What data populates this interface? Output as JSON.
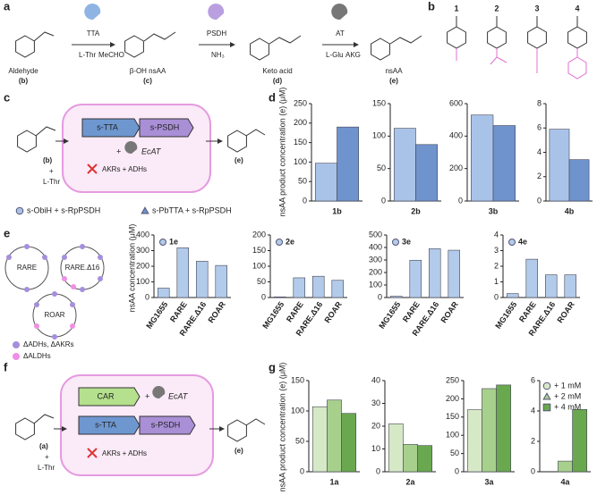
{
  "panel_labels": [
    "a",
    "b",
    "c",
    "d",
    "e",
    "f",
    "g"
  ],
  "scheme_a": {
    "enzymes": [
      "TTA",
      "PSDH",
      "AT"
    ],
    "cosubstrates": [
      "L-Thr",
      "NH₃",
      "L-Glu"
    ],
    "coproducts": [
      "MeCHO",
      "AKG"
    ],
    "compounds": [
      {
        "name": "Aldehyde",
        "id": "(b)"
      },
      {
        "name": "β-OH nsAA",
        "id": "(c)"
      },
      {
        "name": "Keto acid",
        "id": "(d)"
      },
      {
        "name": "nsAA",
        "id": "(e)"
      }
    ]
  },
  "substrates_b": {
    "numbers": [
      "1",
      "2",
      "3",
      "4"
    ]
  },
  "pathway_c": {
    "substrate": "(b)",
    "plus": "+",
    "cosubstrate": "L-Thr",
    "product": "(e)",
    "genes": [
      "s-TTA",
      "s-PSDH"
    ],
    "transaminase": "EcAT",
    "knockout": "AKRs + ADHs"
  },
  "strains_e": {
    "names": [
      "RARE",
      "RARE.Δ16",
      "ROAR"
    ],
    "legend": [
      "ΔADHs, ΔAKRs",
      "ΔALDHs"
    ]
  },
  "pathway_f": {
    "substrate": "(a)",
    "plus": "+",
    "cosubstrate": "L-Thr",
    "product": "(e)",
    "genes": [
      "CAR",
      "s-TTA",
      "s-PSDH"
    ],
    "transaminase": "EcAT",
    "knockout": "AKRs + ADHs"
  },
  "chart_data": [
    {
      "type": "bar",
      "panel": "d",
      "ylabel": "nsAA product concentration (e) (μM)",
      "legend": [
        {
          "name": "s-ObiH + s-RpPSDH",
          "color": "#a9c3e8",
          "marker": "circle"
        },
        {
          "name": "s-PbTTA + s-RpPSDH",
          "color": "#6f93cc",
          "marker": "triangle"
        }
      ],
      "charts": [
        {
          "categories": [
            "1b"
          ],
          "series": [
            {
              "values": [
                97
              ]
            },
            {
              "values": [
                190
              ]
            }
          ],
          "ylim": [
            0,
            250
          ],
          "yticks": [
            0,
            50,
            100,
            150,
            200,
            250
          ]
        },
        {
          "categories": [
            "2b"
          ],
          "series": [
            {
              "values": [
                112
              ]
            },
            {
              "values": [
                87
              ]
            }
          ],
          "ylim": [
            0,
            150
          ],
          "yticks": [
            0,
            50,
            100,
            150
          ]
        },
        {
          "categories": [
            "3b"
          ],
          "series": [
            {
              "values": [
                530
              ]
            },
            {
              "values": [
                465
              ]
            }
          ],
          "ylim": [
            0,
            600
          ],
          "yticks": [
            0,
            200,
            400,
            600
          ]
        },
        {
          "categories": [
            "4b"
          ],
          "series": [
            {
              "values": [
                5.9
              ]
            },
            {
              "values": [
                3.4
              ]
            }
          ],
          "ylim": [
            0,
            8
          ],
          "yticks": [
            0,
            2,
            4,
            6,
            8
          ]
        }
      ]
    },
    {
      "type": "bar",
      "panel": "e",
      "ylabel": "nsAA concentration (μM)",
      "color": "#b3cbea",
      "charts": [
        {
          "categories": [
            "MG1655",
            "RARE",
            "RARE.Δ16",
            "ROAR"
          ],
          "series": [
            {
              "name": "1e",
              "values": [
                60,
                318,
                232,
                205
              ]
            }
          ],
          "ylim": [
            0,
            400
          ],
          "yticks": [
            0,
            100,
            200,
            300,
            400
          ]
        },
        {
          "categories": [
            "MG1655",
            "RARE",
            "RARE.Δ16",
            "ROAR"
          ],
          "series": [
            {
              "name": "2e",
              "values": [
                2,
                63,
                68,
                55
              ]
            }
          ],
          "ylim": [
            0,
            200
          ],
          "yticks": [
            0,
            50,
            100,
            150,
            200
          ]
        },
        {
          "categories": [
            "MG1655",
            "RARE",
            "RARE.Δ16",
            "ROAR"
          ],
          "series": [
            {
              "name": "3e",
              "values": [
                10,
                298,
                390,
                378
              ]
            }
          ],
          "ylim": [
            0,
            500
          ],
          "yticks": [
            0,
            100,
            200,
            300,
            400,
            500
          ]
        },
        {
          "categories": [
            "MG1655",
            "RARE",
            "RARE.Δ16",
            "ROAR"
          ],
          "series": [
            {
              "name": "4e",
              "values": [
                0.25,
                2.45,
                1.45,
                1.45
              ]
            }
          ],
          "ylim": [
            0,
            4
          ],
          "yticks": [
            0,
            1,
            2,
            3,
            4
          ]
        }
      ]
    },
    {
      "type": "bar",
      "panel": "g",
      "ylabel": "nsAA product concentration (e) (μM)",
      "legend": [
        {
          "name": "+ 1 mM",
          "color": "#d6e9c6",
          "marker": "circle"
        },
        {
          "name": "+ 2 mM",
          "color": "#a8d08d",
          "marker": "triangle"
        },
        {
          "name": "+ 4 mM",
          "color": "#6aa84f",
          "marker": "square"
        }
      ],
      "charts": [
        {
          "categories": [
            "1a"
          ],
          "series": [
            {
              "values": [
                107
              ]
            },
            {
              "values": [
                118
              ]
            },
            {
              "values": [
                96
              ]
            }
          ],
          "ylim": [
            0,
            150
          ],
          "yticks": [
            0,
            50,
            100,
            150
          ]
        },
        {
          "categories": [
            "2a"
          ],
          "series": [
            {
              "values": [
                21
              ]
            },
            {
              "values": [
                12
              ]
            },
            {
              "values": [
                11.5
              ]
            }
          ],
          "ylim": [
            0,
            40
          ],
          "yticks": [
            0,
            10,
            20,
            30,
            40
          ]
        },
        {
          "categories": [
            "3a"
          ],
          "series": [
            {
              "values": [
                170
              ]
            },
            {
              "values": [
                228
              ]
            },
            {
              "values": [
                238
              ]
            }
          ],
          "ylim": [
            0,
            250
          ],
          "yticks": [
            0,
            50,
            100,
            150,
            200,
            250
          ]
        },
        {
          "categories": [
            "4a"
          ],
          "series": [
            {
              "values": [
                0
              ]
            },
            {
              "values": [
                0.7
              ]
            },
            {
              "values": [
                4.1
              ]
            }
          ],
          "ylim": [
            0,
            6
          ],
          "yticks": [
            0,
            2,
            4,
            6
          ]
        }
      ]
    }
  ]
}
